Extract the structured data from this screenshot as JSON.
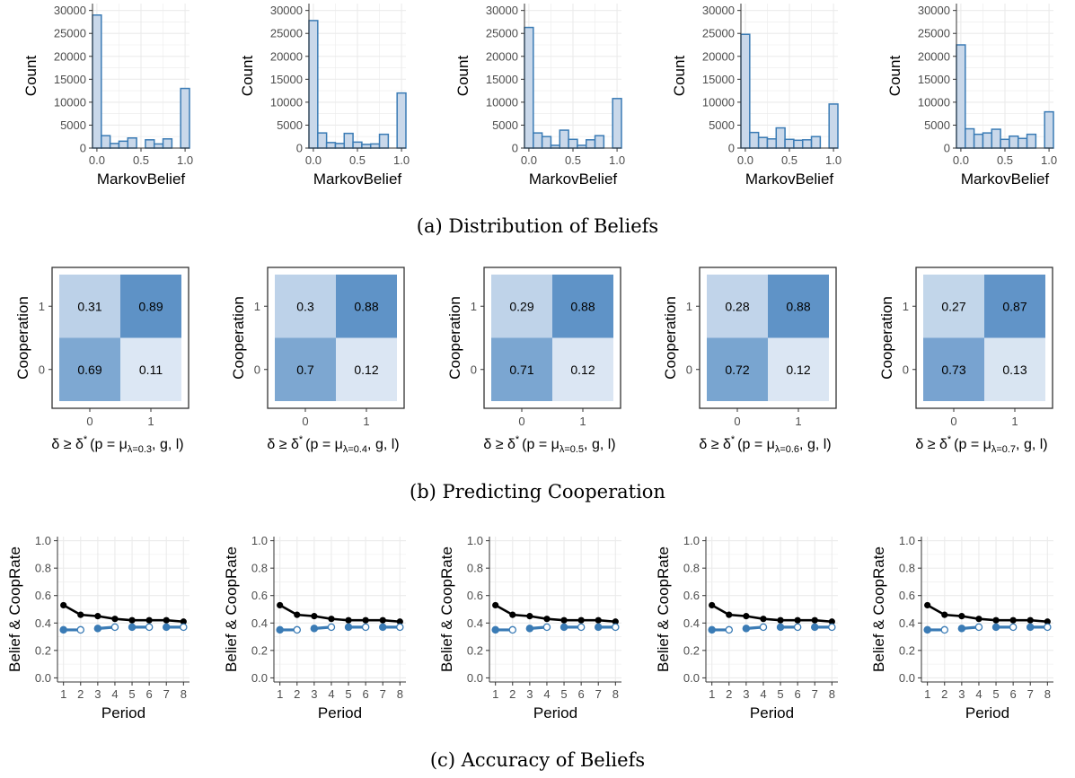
{
  "captions": {
    "a": "(a) Distribution of Beliefs",
    "b": "(b) Predicting Cooperation",
    "c": "(c) Accuracy of Beliefs"
  },
  "colors": {
    "bar_fill": "#c9d8ea",
    "bar_stroke": "#3a7bb5",
    "belief_line": "#000000",
    "coop_line": "#3a7bb5",
    "grid": "#ebebeb"
  },
  "chart_data": [
    {
      "type": "bar",
      "row": "a",
      "index": 0,
      "xlabel": "MarkovBelief",
      "ylabel": "Count",
      "x_ticks": [
        "0.0",
        "0.5",
        "1.0"
      ],
      "xlim": [
        -0.05,
        1.05
      ],
      "ylim": [
        0,
        31500
      ],
      "y_ticks": [
        "0",
        "5000",
        "10000",
        "15000",
        "20000",
        "25000",
        "30000"
      ],
      "bin_centers": [
        0,
        0.1,
        0.2,
        0.3,
        0.4,
        0.5,
        0.6,
        0.7,
        0.8,
        0.9,
        1.0
      ],
      "values": [
        29000,
        2700,
        1000,
        1500,
        2200,
        0,
        1800,
        900,
        2000,
        0,
        13000
      ],
      "grid": true
    },
    {
      "type": "bar",
      "row": "a",
      "index": 1,
      "xlabel": "MarkovBelief",
      "ylabel": "Count",
      "x_ticks": [
        "0.0",
        "0.5",
        "1.0"
      ],
      "xlim": [
        -0.05,
        1.05
      ],
      "ylim": [
        0,
        31500
      ],
      "y_ticks": [
        "0",
        "5000",
        "10000",
        "15000",
        "20000",
        "25000",
        "30000"
      ],
      "bin_centers": [
        0,
        0.1,
        0.2,
        0.3,
        0.4,
        0.5,
        0.6,
        0.7,
        0.8,
        0.9,
        1.0
      ],
      "values": [
        27800,
        3300,
        1200,
        1000,
        3200,
        1300,
        800,
        900,
        3000,
        0,
        12000
      ],
      "grid": true
    },
    {
      "type": "bar",
      "row": "a",
      "index": 2,
      "xlabel": "MarkovBelief",
      "ylabel": "Count",
      "x_ticks": [
        "0.0",
        "0.5",
        "1.0"
      ],
      "xlim": [
        -0.05,
        1.05
      ],
      "ylim": [
        0,
        31500
      ],
      "y_ticks": [
        "0",
        "5000",
        "10000",
        "15000",
        "20000",
        "25000",
        "30000"
      ],
      "bin_centers": [
        0,
        0.1,
        0.2,
        0.3,
        0.4,
        0.5,
        0.6,
        0.7,
        0.8,
        0.9,
        1.0
      ],
      "values": [
        26300,
        3300,
        2500,
        600,
        3900,
        1900,
        600,
        1800,
        2700,
        0,
        10800
      ],
      "grid": true
    },
    {
      "type": "bar",
      "row": "a",
      "index": 3,
      "xlabel": "MarkovBelief",
      "ylabel": "Count",
      "x_ticks": [
        "0.0",
        "0.5",
        "1.0"
      ],
      "xlim": [
        -0.05,
        1.05
      ],
      "ylim": [
        0,
        31500
      ],
      "y_ticks": [
        "0",
        "5000",
        "10000",
        "15000",
        "20000",
        "25000",
        "30000"
      ],
      "bin_centers": [
        0,
        0.1,
        0.2,
        0.3,
        0.4,
        0.5,
        0.6,
        0.7,
        0.8,
        0.9,
        1.0
      ],
      "values": [
        24800,
        3400,
        2300,
        2000,
        4400,
        1900,
        1700,
        1800,
        2500,
        0,
        9600
      ],
      "grid": true
    },
    {
      "type": "bar",
      "row": "a",
      "index": 4,
      "xlabel": "MarkovBelief",
      "ylabel": "Count",
      "x_ticks": [
        "0.0",
        "0.5",
        "1.0"
      ],
      "xlim": [
        -0.05,
        1.05
      ],
      "ylim": [
        0,
        31500
      ],
      "y_ticks": [
        "0",
        "5000",
        "10000",
        "15000",
        "20000",
        "25000",
        "30000"
      ],
      "bin_centers": [
        0,
        0.1,
        0.2,
        0.3,
        0.4,
        0.5,
        0.6,
        0.7,
        0.8,
        0.9,
        1.0
      ],
      "values": [
        22500,
        4200,
        3000,
        3300,
        4100,
        1900,
        2600,
        2100,
        3000,
        0,
        7900
      ],
      "grid": true
    },
    {
      "type": "heatmap",
      "row": "b",
      "index": 0,
      "ylabel": "Cooperation",
      "x_categories": [
        "0",
        "1"
      ],
      "y_categories": [
        "0",
        "1"
      ],
      "xlabel_main": "δ ≥ δ",
      "xlabel_sup": "*",
      "xlabel_open": "(p = μ",
      "xlabel_sub": "λ=0.3",
      "xlabel_close": ", g, l)",
      "cells": [
        {
          "x": 0,
          "y": 1,
          "value": "0.31"
        },
        {
          "x": 1,
          "y": 1,
          "value": "0.89"
        },
        {
          "x": 0,
          "y": 0,
          "value": "0.69"
        },
        {
          "x": 1,
          "y": 0,
          "value": "0.11"
        }
      ]
    },
    {
      "type": "heatmap",
      "row": "b",
      "index": 1,
      "ylabel": "Cooperation",
      "x_categories": [
        "0",
        "1"
      ],
      "y_categories": [
        "0",
        "1"
      ],
      "xlabel_main": "δ ≥ δ",
      "xlabel_sup": "*",
      "xlabel_open": "(p = μ",
      "xlabel_sub": "λ=0.4",
      "xlabel_close": ", g, l)",
      "cells": [
        {
          "x": 0,
          "y": 1,
          "value": "0.3"
        },
        {
          "x": 1,
          "y": 1,
          "value": "0.88"
        },
        {
          "x": 0,
          "y": 0,
          "value": "0.7"
        },
        {
          "x": 1,
          "y": 0,
          "value": "0.12"
        }
      ]
    },
    {
      "type": "heatmap",
      "row": "b",
      "index": 2,
      "ylabel": "Cooperation",
      "x_categories": [
        "0",
        "1"
      ],
      "y_categories": [
        "0",
        "1"
      ],
      "xlabel_main": "δ ≥ δ",
      "xlabel_sup": "*",
      "xlabel_open": "(p = μ",
      "xlabel_sub": "λ=0.5",
      "xlabel_close": ", g, l)",
      "cells": [
        {
          "x": 0,
          "y": 1,
          "value": "0.29"
        },
        {
          "x": 1,
          "y": 1,
          "value": "0.88"
        },
        {
          "x": 0,
          "y": 0,
          "value": "0.71"
        },
        {
          "x": 1,
          "y": 0,
          "value": "0.12"
        }
      ]
    },
    {
      "type": "heatmap",
      "row": "b",
      "index": 3,
      "ylabel": "Cooperation",
      "x_categories": [
        "0",
        "1"
      ],
      "y_categories": [
        "0",
        "1"
      ],
      "xlabel_main": "δ ≥ δ",
      "xlabel_sup": "*",
      "xlabel_open": "(p = μ",
      "xlabel_sub": "λ=0.6",
      "xlabel_close": ", g, l)",
      "cells": [
        {
          "x": 0,
          "y": 1,
          "value": "0.28"
        },
        {
          "x": 1,
          "y": 1,
          "value": "0.88"
        },
        {
          "x": 0,
          "y": 0,
          "value": "0.72"
        },
        {
          "x": 1,
          "y": 0,
          "value": "0.12"
        }
      ]
    },
    {
      "type": "heatmap",
      "row": "b",
      "index": 4,
      "ylabel": "Cooperation",
      "x_categories": [
        "0",
        "1"
      ],
      "y_categories": [
        "0",
        "1"
      ],
      "xlabel_main": "δ ≥ δ",
      "xlabel_sup": "*",
      "xlabel_open": "(p = μ",
      "xlabel_sub": "λ=0.7",
      "xlabel_close": ", g, l)",
      "cells": [
        {
          "x": 0,
          "y": 1,
          "value": "0.27"
        },
        {
          "x": 1,
          "y": 1,
          "value": "0.87"
        },
        {
          "x": 0,
          "y": 0,
          "value": "0.73"
        },
        {
          "x": 1,
          "y": 0,
          "value": "0.13"
        }
      ]
    },
    {
      "type": "line",
      "row": "c",
      "index": 0,
      "xlabel": "Period",
      "ylabel": "Belief & CoopRate",
      "x": [
        1,
        2,
        3,
        4,
        5,
        6,
        7,
        8
      ],
      "ylim": [
        -0.03,
        1.03
      ],
      "y_ticks": [
        "0.0",
        "0.2",
        "0.4",
        "0.6",
        "0.8",
        "1.0"
      ],
      "grid": true,
      "series": [
        {
          "role": "belief",
          "values": [
            0.53,
            0.46,
            0.45,
            0.43,
            0.42,
            0.42,
            0.42,
            0.41
          ]
        },
        {
          "role": "cooprate",
          "values": [
            0.35,
            0.35,
            0.36,
            0.37,
            0.37,
            0.37,
            0.37,
            0.37
          ]
        }
      ]
    },
    {
      "type": "line",
      "row": "c",
      "index": 1,
      "xlabel": "Period",
      "ylabel": "Belief & CoopRate",
      "x": [
        1,
        2,
        3,
        4,
        5,
        6,
        7,
        8
      ],
      "ylim": [
        -0.03,
        1.03
      ],
      "y_ticks": [
        "0.0",
        "0.2",
        "0.4",
        "0.6",
        "0.8",
        "1.0"
      ],
      "grid": true,
      "series": [
        {
          "role": "belief",
          "values": [
            0.53,
            0.46,
            0.45,
            0.43,
            0.42,
            0.42,
            0.42,
            0.41
          ]
        },
        {
          "role": "cooprate",
          "values": [
            0.35,
            0.35,
            0.36,
            0.37,
            0.37,
            0.37,
            0.37,
            0.37
          ]
        }
      ]
    },
    {
      "type": "line",
      "row": "c",
      "index": 2,
      "xlabel": "Period",
      "ylabel": "Belief & CoopRate",
      "x": [
        1,
        2,
        3,
        4,
        5,
        6,
        7,
        8
      ],
      "ylim": [
        -0.03,
        1.03
      ],
      "y_ticks": [
        "0.0",
        "0.2",
        "0.4",
        "0.6",
        "0.8",
        "1.0"
      ],
      "grid": true,
      "series": [
        {
          "role": "belief",
          "values": [
            0.53,
            0.46,
            0.45,
            0.43,
            0.42,
            0.42,
            0.42,
            0.41
          ]
        },
        {
          "role": "cooprate",
          "values": [
            0.35,
            0.35,
            0.36,
            0.37,
            0.37,
            0.37,
            0.37,
            0.37
          ]
        }
      ]
    },
    {
      "type": "line",
      "row": "c",
      "index": 3,
      "xlabel": "Period",
      "ylabel": "Belief & CoopRate",
      "x": [
        1,
        2,
        3,
        4,
        5,
        6,
        7,
        8
      ],
      "ylim": [
        -0.03,
        1.03
      ],
      "y_ticks": [
        "0.0",
        "0.2",
        "0.4",
        "0.6",
        "0.8",
        "1.0"
      ],
      "grid": true,
      "series": [
        {
          "role": "belief",
          "values": [
            0.53,
            0.46,
            0.45,
            0.43,
            0.42,
            0.42,
            0.42,
            0.41
          ]
        },
        {
          "role": "cooprate",
          "values": [
            0.35,
            0.35,
            0.36,
            0.37,
            0.37,
            0.37,
            0.37,
            0.37
          ]
        }
      ]
    },
    {
      "type": "line",
      "row": "c",
      "index": 4,
      "xlabel": "Period",
      "ylabel": "Belief & CoopRate",
      "x": [
        1,
        2,
        3,
        4,
        5,
        6,
        7,
        8
      ],
      "ylim": [
        -0.03,
        1.03
      ],
      "y_ticks": [
        "0.0",
        "0.2",
        "0.4",
        "0.6",
        "0.8",
        "1.0"
      ],
      "grid": true,
      "series": [
        {
          "role": "belief",
          "values": [
            0.53,
            0.46,
            0.45,
            0.43,
            0.42,
            0.42,
            0.42,
            0.41
          ]
        },
        {
          "role": "cooprate",
          "values": [
            0.35,
            0.35,
            0.36,
            0.37,
            0.37,
            0.37,
            0.37,
            0.37
          ]
        }
      ]
    }
  ]
}
